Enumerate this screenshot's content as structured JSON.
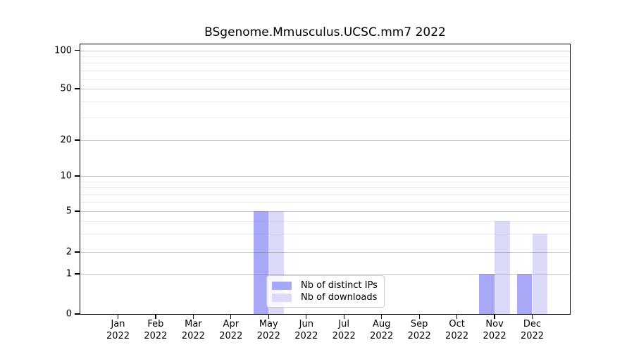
{
  "chart_data": {
    "type": "bar",
    "title": "BSgenome.Mmusculus.UCSC.mm7 2022",
    "x_categories": [
      "Jan",
      "Feb",
      "Mar",
      "Apr",
      "May",
      "Jun",
      "Jul",
      "Aug",
      "Sep",
      "Oct",
      "Nov",
      "Dec"
    ],
    "x_year": "2022",
    "series": [
      {
        "name": "Nb of distinct IPs",
        "color": "#a8a8f7",
        "values": [
          0,
          0,
          0,
          0,
          5,
          0,
          0,
          0,
          0,
          0,
          1,
          1
        ]
      },
      {
        "name": "Nb of downloads",
        "color": "#dbdbf9",
        "values": [
          0,
          0,
          0,
          0,
          5,
          0,
          0,
          0,
          0,
          0,
          4,
          3
        ]
      }
    ],
    "y_axis": {
      "scale": "log-like",
      "major_ticks": [
        0,
        1,
        2,
        5,
        10,
        20,
        50,
        100
      ],
      "minor_gridlines": [
        3,
        4,
        6,
        7,
        8,
        9,
        30,
        40,
        60,
        70,
        80,
        90
      ],
      "range": [
        0,
        100
      ]
    },
    "grid": true,
    "legend_position": "bottom-center",
    "colors": {
      "grid_major": "#cccccc",
      "grid_minor": "#ebebeb",
      "spine": "#000000",
      "background": "#ffffff"
    }
  }
}
